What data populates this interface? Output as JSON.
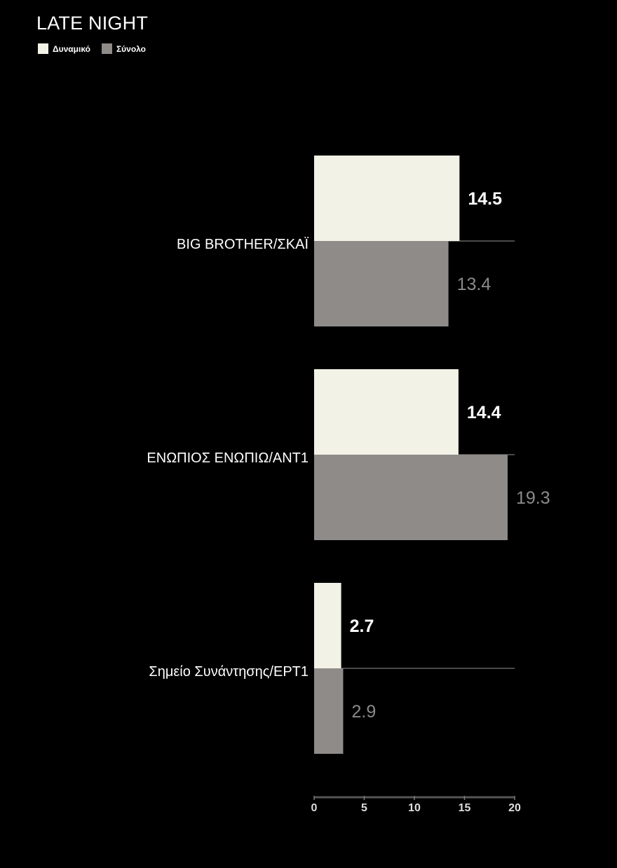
{
  "chart_data": {
    "type": "bar",
    "orientation": "horizontal",
    "title": "LATE NIGHT",
    "categories": [
      "BIG BROTHER/ΣΚΑΪ",
      "ΕΝΩΠΙΟΣ ΕΝΩΠΙΩ/ΑΝΤ1",
      "Σημείο Συνάντησης/ΕΡΤ1"
    ],
    "series": [
      {
        "name": "Δυναμικό",
        "values": [
          14.5,
          14.4,
          2.7
        ],
        "color": "#f2f2e6",
        "label_color": "#ffffff"
      },
      {
        "name": "Σύνολο",
        "values": [
          13.4,
          19.3,
          2.9
        ],
        "color": "#8e8b89",
        "label_color": "#8a8a8a"
      }
    ],
    "xlim": [
      0,
      20
    ],
    "xticks": [
      "0",
      "5",
      "10",
      "15",
      "20"
    ],
    "legend_position": "top-left",
    "grid": false
  }
}
